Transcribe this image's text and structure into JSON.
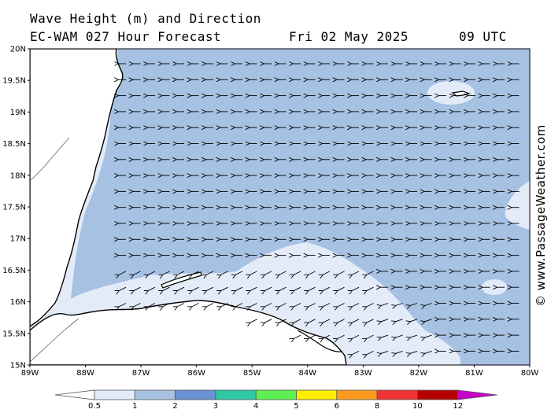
{
  "header": {
    "title": "Wave Height (m) and Direction",
    "model": "EC-WAM 027 Hour Forecast",
    "date": "Fri 02 May 2025",
    "time": "09 UTC"
  },
  "credit": "© www.PassageWeather.com",
  "map": {
    "lat_labels": [
      "20N",
      "19.5N",
      "19N",
      "18.5N",
      "18N",
      "17.5N",
      "17N",
      "16.5N",
      "16N",
      "15.5N",
      "15N"
    ],
    "lon_labels": [
      "89W",
      "88W",
      "87W",
      "86W",
      "85W",
      "84W",
      "83W",
      "82W",
      "81W",
      "80W"
    ],
    "lat_range": [
      15,
      20
    ],
    "lon_range": [
      -89,
      -80
    ],
    "land_color": "#ffffff",
    "sea_color": "#a7c1e3",
    "wave_direction": "east to west, turning south-west near the Honduras coast"
  },
  "legend": {
    "labels": [
      "0.5",
      "1",
      "2",
      "3",
      "4",
      "5",
      "6",
      "8",
      "10",
      "12"
    ],
    "colors": [
      "#ffffff",
      "#e3ebf8",
      "#a7c1e3",
      "#6a92d4",
      "#2ec9a4",
      "#5cf050",
      "#ffee00",
      "#ff9a1e",
      "#f03232",
      "#b50000",
      "#c800c8"
    ]
  }
}
